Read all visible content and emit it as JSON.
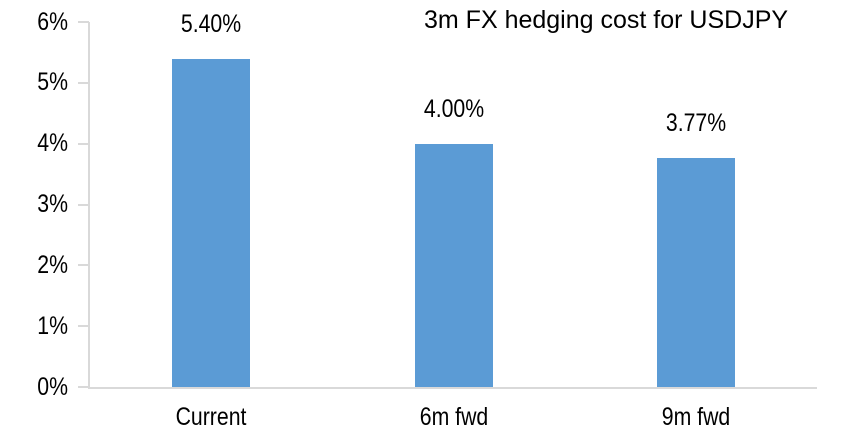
{
  "chart_data": {
    "type": "bar",
    "title": "3m FX hedging cost for USDJPY",
    "categories": [
      "Current",
      "6m fwd",
      "9m fwd"
    ],
    "values": [
      5.4,
      4.0,
      3.77
    ],
    "data_labels": [
      "5.40%",
      "4.00%",
      "3.77%"
    ],
    "xlabel": "",
    "ylabel": "",
    "ylim": [
      0,
      6
    ],
    "yticks": [
      0,
      1,
      2,
      3,
      4,
      5,
      6
    ],
    "ytick_labels": [
      "0%",
      "1%",
      "2%",
      "3%",
      "4%",
      "5%",
      "6%"
    ],
    "grid": false,
    "legend": false,
    "bar_color": "#5b9bd5",
    "axis_color": "#d9d9d9",
    "text_color": "#000000",
    "background_color": "#ffffff"
  }
}
